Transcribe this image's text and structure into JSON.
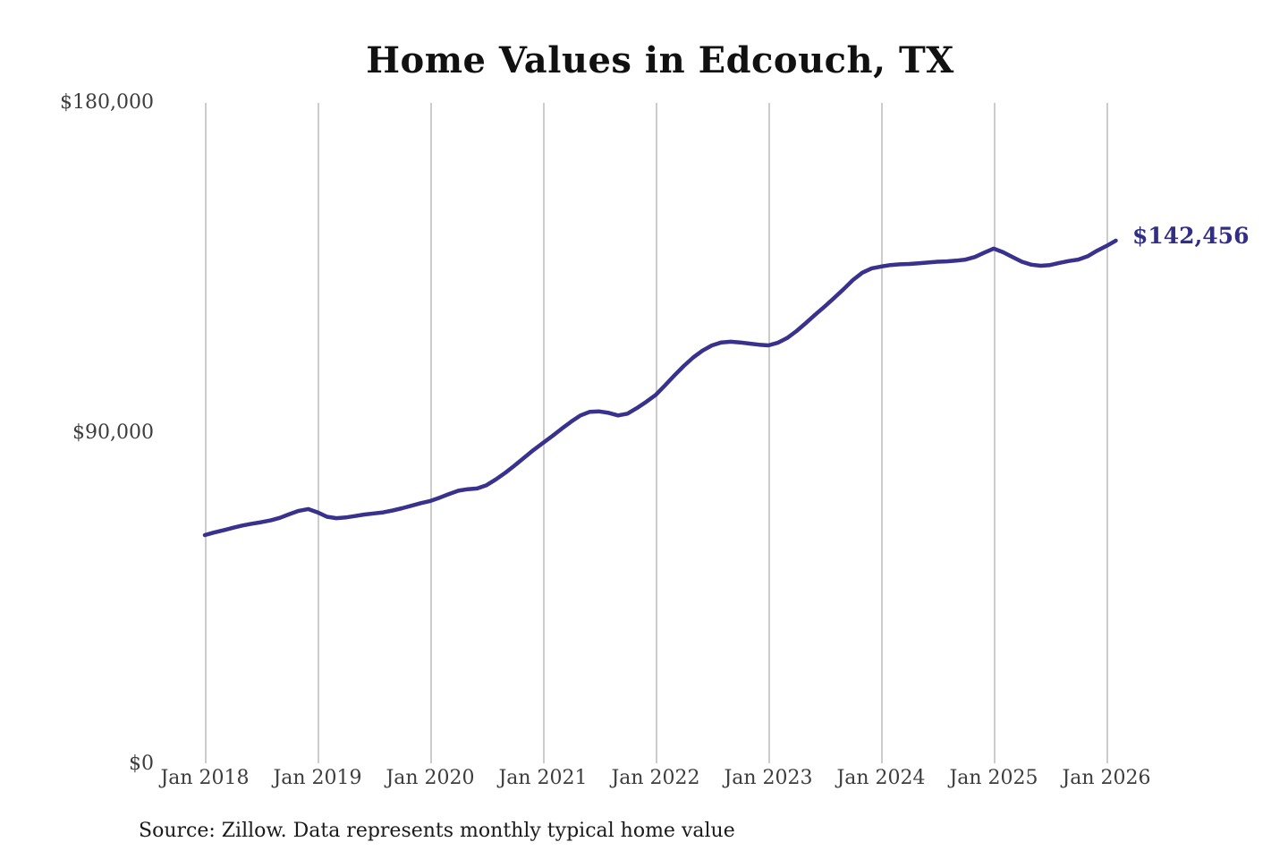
{
  "page": {
    "title": "Home Values in Edcouch, TX",
    "source_note": "Source: Zillow. Data represents monthly typical home value"
  },
  "chart_data": {
    "type": "line",
    "title": "Home Values in Edcouch, TX",
    "xlabel": "",
    "ylabel": "",
    "ylim": [
      0,
      180000
    ],
    "y_ticks": [
      0,
      90000,
      180000
    ],
    "y_tick_labels_top_to_bottom": [
      "$180,000",
      "$90,000",
      "$0"
    ],
    "x_tick_labels": [
      "Jan 2018",
      "Jan 2019",
      "Jan 2020",
      "Jan 2021",
      "Jan 2022",
      "Jan 2023",
      "Jan 2024",
      "Jan 2025",
      "Jan 2026"
    ],
    "grid": "vertical-gridlines-only",
    "legend": "none",
    "line_color": "#38318e",
    "annotation_color": "#332e85",
    "end_annotation": {
      "label": "$142,456",
      "value": 142456,
      "month": "2026-02"
    },
    "series": [
      {
        "name": "Monthly typical home value",
        "x": [
          "2018-01",
          "2018-02",
          "2018-03",
          "2018-04",
          "2018-05",
          "2018-06",
          "2018-07",
          "2018-08",
          "2018-09",
          "2018-10",
          "2018-11",
          "2018-12",
          "2019-01",
          "2019-02",
          "2019-03",
          "2019-04",
          "2019-05",
          "2019-06",
          "2019-07",
          "2019-08",
          "2019-09",
          "2019-10",
          "2019-11",
          "2019-12",
          "2020-01",
          "2020-02",
          "2020-03",
          "2020-04",
          "2020-05",
          "2020-06",
          "2020-07",
          "2020-08",
          "2020-09",
          "2020-10",
          "2020-11",
          "2020-12",
          "2021-01",
          "2021-02",
          "2021-03",
          "2021-04",
          "2021-05",
          "2021-06",
          "2021-07",
          "2021-08",
          "2021-09",
          "2021-10",
          "2021-11",
          "2021-12",
          "2022-01",
          "2022-02",
          "2022-03",
          "2022-04",
          "2022-05",
          "2022-06",
          "2022-07",
          "2022-08",
          "2022-09",
          "2022-10",
          "2022-11",
          "2022-12",
          "2023-01",
          "2023-02",
          "2023-03",
          "2023-04",
          "2023-05",
          "2023-06",
          "2023-07",
          "2023-08",
          "2023-09",
          "2023-10",
          "2023-11",
          "2023-12",
          "2024-01",
          "2024-02",
          "2024-03",
          "2024-04",
          "2024-05",
          "2024-06",
          "2024-07",
          "2024-08",
          "2024-09",
          "2024-10",
          "2024-11",
          "2024-12",
          "2025-01",
          "2025-02",
          "2025-03",
          "2025-04",
          "2025-05",
          "2025-06",
          "2025-07",
          "2025-08",
          "2025-09",
          "2025-10",
          "2025-11",
          "2025-12",
          "2026-01",
          "2026-02"
        ],
        "values": [
          62200,
          62900,
          63500,
          64200,
          64800,
          65300,
          65700,
          66200,
          66900,
          67900,
          68800,
          69300,
          68400,
          67200,
          66800,
          67000,
          67400,
          67800,
          68100,
          68400,
          68900,
          69500,
          70200,
          70900,
          71500,
          72400,
          73400,
          74300,
          74700,
          74900,
          75800,
          77400,
          79200,
          81200,
          83300,
          85400,
          87300,
          89200,
          91200,
          93100,
          94800,
          95800,
          95900,
          95500,
          94800,
          95300,
          96800,
          98500,
          100400,
          103000,
          105700,
          108300,
          110600,
          112500,
          113900,
          114700,
          114900,
          114700,
          114400,
          114100,
          113900,
          114600,
          115900,
          117800,
          120000,
          122300,
          124500,
          126800,
          129200,
          131700,
          133700,
          134900,
          135400,
          135800,
          136000,
          136100,
          136300,
          136500,
          136700,
          136800,
          137000,
          137300,
          138000,
          139200,
          140300,
          139300,
          138000,
          136700,
          135900,
          135600,
          135800,
          136400,
          136900,
          137300,
          138200,
          139700,
          141000,
          142456
        ]
      }
    ],
    "source": "Source: Zillow. Data represents monthly typical home value"
  }
}
